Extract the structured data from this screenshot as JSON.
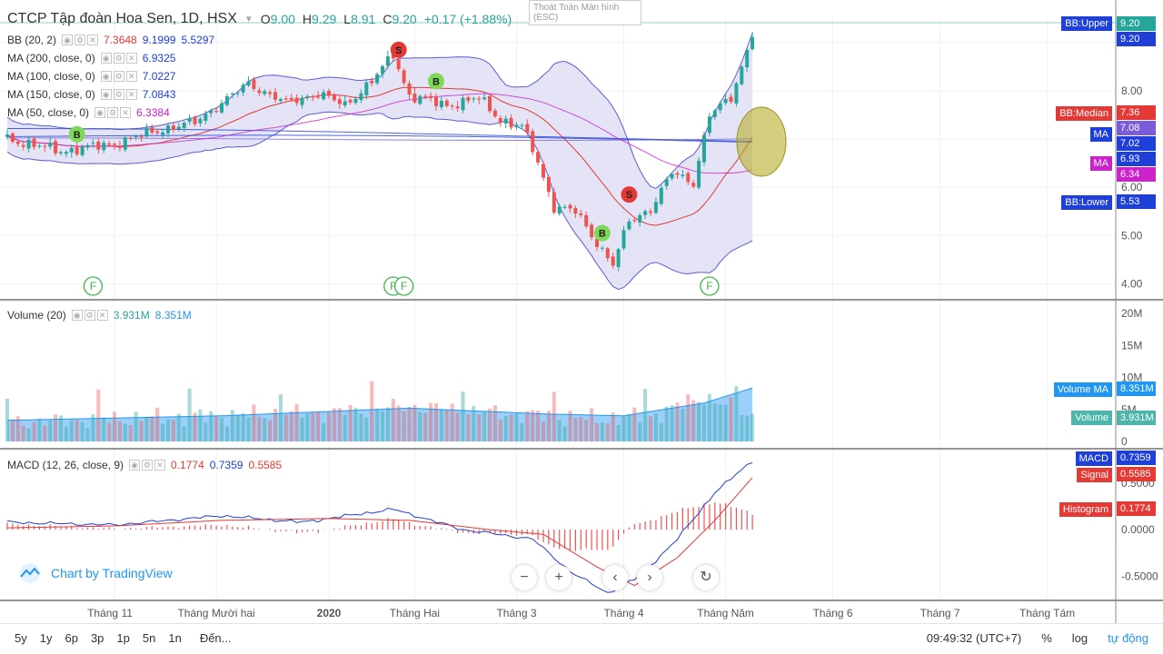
{
  "header": {
    "title": "CTCP Tập đoàn Hoa Sen, 1D, HSX",
    "ohlc": [
      {
        "label": "O",
        "value": "9.00"
      },
      {
        "label": "H",
        "value": "9.29"
      },
      {
        "label": "L",
        "value": "8.91"
      },
      {
        "label": "C",
        "value": "9.20"
      }
    ],
    "change": "+0.17 (+1.88%)",
    "tooltip": "Thoát Toàn Màn hình (ESC)"
  },
  "indicators": [
    {
      "label": "BB (20, 2)",
      "values": [
        "7.3648",
        "9.1999",
        "5.5297"
      ],
      "colors": [
        "#e53935",
        "#1e3fd8",
        "#1e3fd8"
      ]
    },
    {
      "label": "MA (200, close, 0)",
      "values": [
        "6.9325"
      ],
      "colors": [
        "#1e3fd8"
      ]
    },
    {
      "label": "MA (100, close, 0)",
      "values": [
        "7.0227"
      ],
      "colors": [
        "#1e3fd8"
      ]
    },
    {
      "label": "MA (150, close, 0)",
      "values": [
        "7.0843"
      ],
      "colors": [
        "#1e3fd8"
      ]
    },
    {
      "label": "MA (50, close, 0)",
      "values": [
        "6.3384"
      ],
      "colors": [
        "#cc22cc"
      ]
    }
  ],
  "volume_legend": {
    "label": "Volume (20)",
    "values": [
      "3.931M",
      "8.351M"
    ],
    "colors": [
      "#26a69a",
      "#2196f3"
    ]
  },
  "macd_legend": {
    "label": "MACD (12, 26, close, 9)",
    "values": [
      "0.1774",
      "0.7359",
      "0.5585"
    ],
    "colors": [
      "#e53935",
      "#1e3fd8",
      "#e53935"
    ]
  },
  "right_tags": {
    "bb_upper": "BB:Upper",
    "bb_median": "BB:Median",
    "bb_lower": "BB:Lower",
    "ma": "MA",
    "volume_ma": "Volume MA",
    "volume": "Volume",
    "macd": "MACD",
    "signal": "Signal",
    "histogram": "Histogram"
  },
  "price_tags": {
    "last": "9.20",
    "bb_upper": "9.20",
    "bb_median": "7.36",
    "ma150": "7.08",
    "ma100": "7.02",
    "ma200": "6.93",
    "ma50": "6.34",
    "bb_lower": "5.53",
    "volume_ma": "8.351M",
    "volume": "3.931M",
    "macd": "0.7359",
    "signal": "0.5585",
    "histogram": "0.1774"
  },
  "colors": {
    "up": "#26a69a",
    "down": "#ef5350",
    "bb_band": "#5b5bd6",
    "bb_fill": "#d9d9f2",
    "bb_median": "#e53935",
    "ma_blue": "#1e3fd8",
    "ma_magenta": "#cc22cc",
    "volume_ma": "#2196f3",
    "macd": "#1e3fd8",
    "signal": "#e53935"
  },
  "chart_data": {
    "type": "candlestick",
    "x_ticks": [
      "Tháng 11",
      "Tháng Mười hai",
      "2020",
      "Tháng Hai",
      "Tháng 3",
      "Tháng 4",
      "Tháng Năm",
      "Tháng 6",
      "Tháng 7",
      "Tháng Tám"
    ],
    "price_axis": {
      "ticks": [
        "4.00",
        "5.00",
        "6.00",
        "8.00",
        "9.00"
      ],
      "range": [
        3.8,
        9.45
      ]
    },
    "volume_axis": {
      "ticks": [
        "0",
        "5M",
        "10M",
        "15M",
        "20M"
      ],
      "range_millions": [
        0,
        21
      ]
    },
    "macd_axis": {
      "ticks": [
        "-0.5000",
        "0.0000",
        "0.5000"
      ],
      "range": [
        -0.75,
        0.85
      ]
    },
    "markers": [
      {
        "type": "B",
        "bar": 13,
        "price": 7.1
      },
      {
        "type": "S",
        "bar": 73,
        "price": 8.85
      },
      {
        "type": "B",
        "bar": 80,
        "price": 8.2
      },
      {
        "type": "S",
        "bar": 116,
        "price": 5.85
      },
      {
        "type": "B",
        "bar": 111,
        "price": 5.05
      }
    ],
    "events": [
      "F",
      "F",
      "F",
      "F"
    ],
    "series_anchors": {
      "bars": 140,
      "close": [
        [
          0,
          7.0
        ],
        [
          10,
          6.75
        ],
        [
          20,
          6.9
        ],
        [
          27,
          7.15
        ],
        [
          35,
          7.35
        ],
        [
          40,
          7.75
        ],
        [
          45,
          8.15
        ],
        [
          52,
          7.75
        ],
        [
          58,
          7.95
        ],
        [
          63,
          7.7
        ],
        [
          68,
          8.2
        ],
        [
          72,
          8.75
        ],
        [
          75,
          7.9
        ],
        [
          82,
          7.7
        ],
        [
          88,
          7.85
        ],
        [
          92,
          7.4
        ],
        [
          96,
          7.25
        ],
        [
          98,
          6.8
        ],
        [
          102,
          5.6
        ],
        [
          106,
          5.5
        ],
        [
          110,
          4.85
        ],
        [
          113,
          4.4
        ],
        [
          116,
          5.3
        ],
        [
          120,
          5.55
        ],
        [
          124,
          6.3
        ],
        [
          128,
          6.1
        ],
        [
          131,
          7.5
        ],
        [
          135,
          7.85
        ],
        [
          137,
          8.5
        ],
        [
          139,
          9.2
        ]
      ],
      "volume_millions": [
        [
          0,
          3
        ],
        [
          20,
          3.5
        ],
        [
          40,
          4
        ],
        [
          60,
          4.5
        ],
        [
          75,
          5.5
        ],
        [
          90,
          4.5
        ],
        [
          100,
          4
        ],
        [
          110,
          3.5
        ],
        [
          120,
          4
        ],
        [
          130,
          7
        ],
        [
          139,
          3.9
        ]
      ],
      "volume_ma_millions": [
        [
          0,
          3.3
        ],
        [
          40,
          4
        ],
        [
          75,
          5.2
        ],
        [
          100,
          4.3
        ],
        [
          115,
          4
        ],
        [
          130,
          6
        ],
        [
          139,
          8.35
        ]
      ],
      "macd": [
        [
          0,
          0.08
        ],
        [
          20,
          0.05
        ],
        [
          40,
          0.15
        ],
        [
          55,
          0.08
        ],
        [
          72,
          0.22
        ],
        [
          85,
          0.0
        ],
        [
          98,
          -0.1
        ],
        [
          105,
          -0.45
        ],
        [
          112,
          -0.68
        ],
        [
          118,
          -0.5
        ],
        [
          125,
          -0.1
        ],
        [
          132,
          0.4
        ],
        [
          139,
          0.74
        ]
      ],
      "signal": [
        [
          0,
          0.02
        ],
        [
          20,
          0.04
        ],
        [
          40,
          0.1
        ],
        [
          60,
          0.12
        ],
        [
          75,
          0.1
        ],
        [
          90,
          0.0
        ],
        [
          100,
          -0.05
        ],
        [
          110,
          -0.4
        ],
        [
          117,
          -0.6
        ],
        [
          125,
          -0.3
        ],
        [
          132,
          0.1
        ],
        [
          139,
          0.56
        ]
      ]
    }
  }
}
